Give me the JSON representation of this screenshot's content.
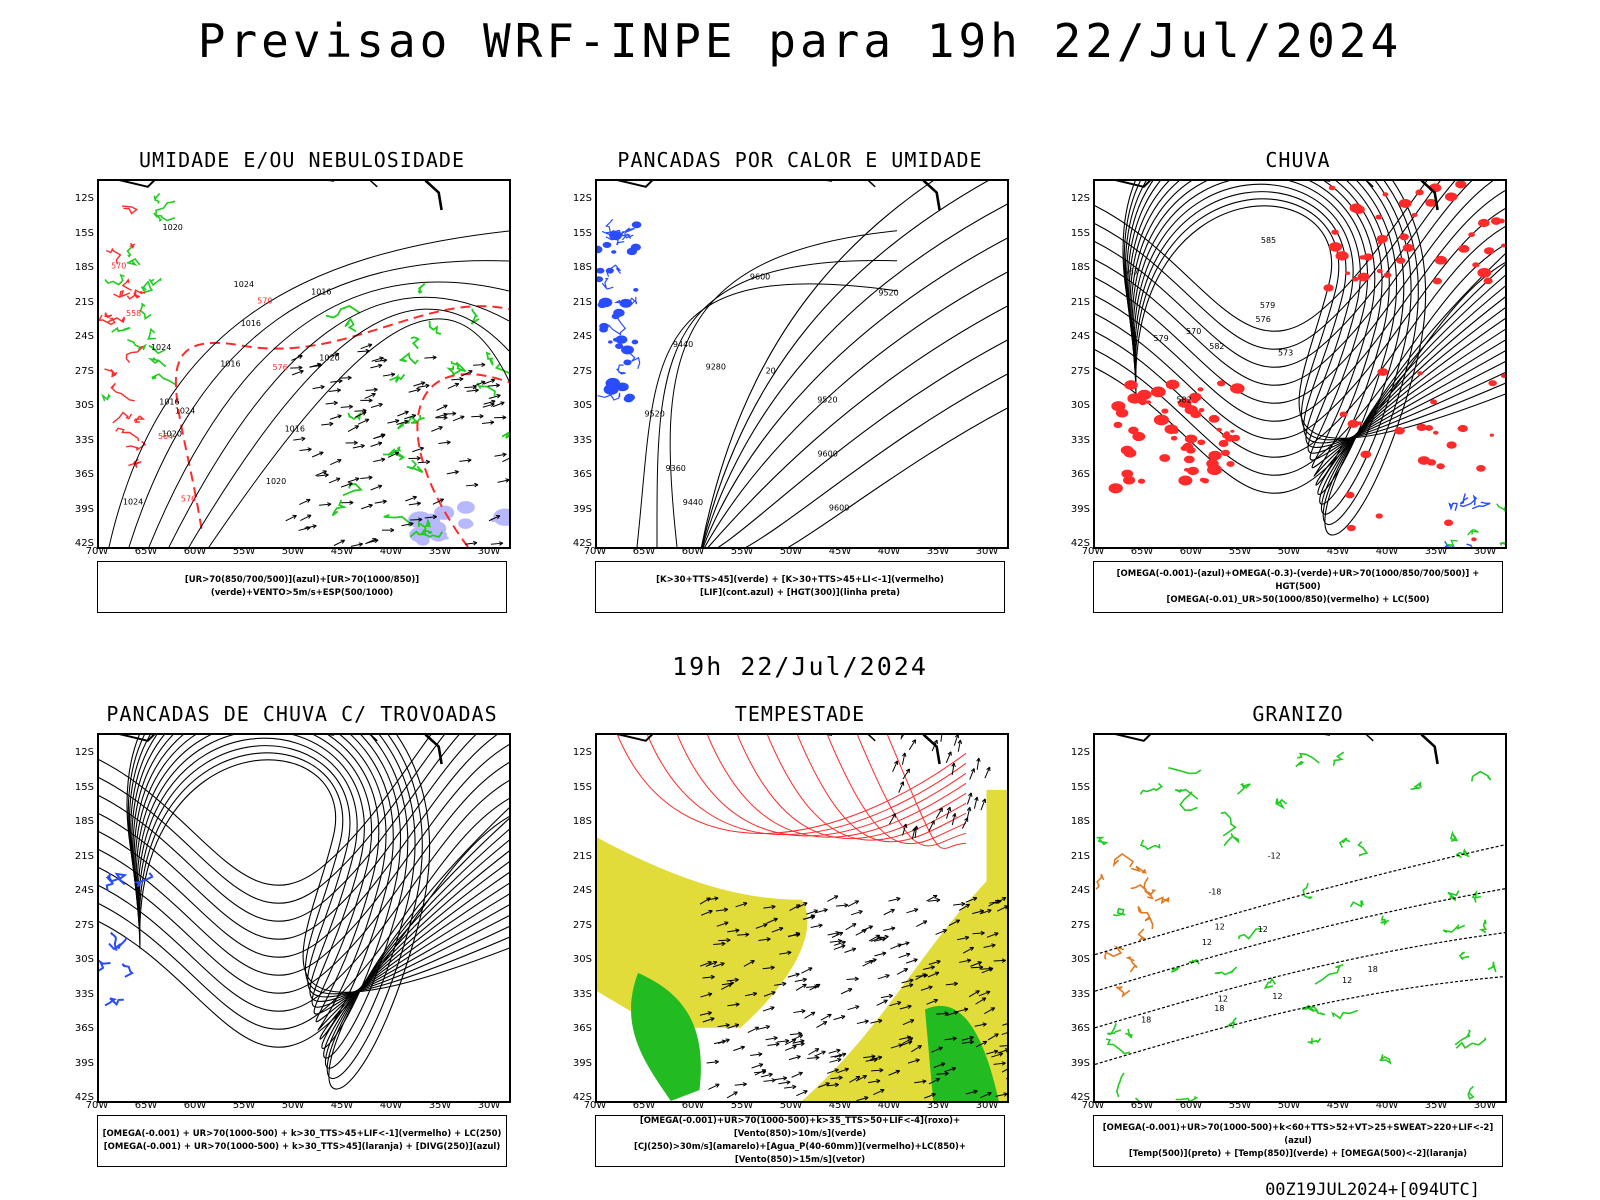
{
  "title": "Previsao WRF-INPE  para 19h 22/Jul/2024",
  "subtitle": "19h 22/Jul/2024",
  "footer": "00Z19JUL2024+[094UTC]",
  "lat_labels": [
    "12S",
    "15S",
    "18S",
    "21S",
    "24S",
    "27S",
    "30S",
    "33S",
    "36S",
    "39S",
    "42S"
  ],
  "lon_labels": [
    "70W",
    "65W",
    "60W",
    "55W",
    "50W",
    "45W",
    "40W",
    "35W",
    "30W"
  ],
  "colors": {
    "red": "#ff2a2a",
    "green": "#22cc22",
    "blue": "#2a4cff",
    "yellow": "#e2dc3a",
    "lavender": "#b8b8ff",
    "darkgreen": "#22bb22",
    "orange": "#e07a20"
  },
  "panels": [
    {
      "title": "UMIDADE E/OU NEBULOSIDADE",
      "legend": [
        "[UR>70(850/700/500)](azul)+[UR>70(1000/850)](verde)+VENTO>5m/s+ESP(500/1000)"
      ],
      "contour_labels": [
        "1020",
        "1016",
        "1016",
        "1020",
        "1016",
        "1024",
        "1024",
        "1024",
        "1024",
        "1016",
        "1020",
        "1020",
        "1016"
      ],
      "colored_labels": [
        "570",
        "570",
        "558",
        "576",
        "576",
        "564"
      ]
    },
    {
      "title": "PANCADAS POR CALOR E UMIDADE",
      "legend": [
        "[K>30+TTS>45](verde) + [K>30+TTS>45+LI<-1](vermelho)",
        "[LIF](cont.azul) + [HGT(300)](linha preta)"
      ],
      "contour_labels": [
        "9600",
        "9520",
        "9600",
        "9600",
        "9440",
        "9520",
        "9360",
        "9440",
        "9280",
        "9520",
        "20"
      ]
    },
    {
      "title": "CHUVA",
      "legend": [
        "[OMEGA(-0.001)-(azul)+OMEGA(-0.3)-(verde)+UR>70(1000/850/700/500)] + HGT(500)",
        "[OMEGA(-0.01)_UR>50(1000/850)(vermelho) + LC(500)"
      ],
      "contour_labels": [
        "585",
        "582",
        "579",
        "576",
        "573",
        "570",
        "567",
        "582",
        "579"
      ]
    },
    {
      "title": "PANCADAS DE CHUVA C/ TROVOADAS",
      "legend": [
        "[OMEGA(-0.001) + UR>70(1000-500) + k>30_TTS>45+LIF<-1](vermelho) + LC(250)",
        "[OMEGA(-0.001) + UR>70(1000-500) + k>30_TTS>45](laranja) + [DIVG(250)](azul)"
      ]
    },
    {
      "title": "TEMPESTADE",
      "legend": [
        "[OMEGA(-0.001)+UR>70(1000-500)+k>35_TTS>50+LIF<-4](roxo)+[Vento(850)>10m/s](verde)",
        "[CJ(250)>30m/s](amarelo)+[Agua_P(40-60mm)](vermelho)+LC(850)+[Vento(850)>15m/s](vetor)"
      ]
    },
    {
      "title": "GRANIZO",
      "legend": [
        "[OMEGA(-0.001)+UR>70(1000-500)+k<60+TTS>52+VT>25+SWEAT>220+LIF<-2](azul)",
        "[Temp(500)](preto) + [Temp(850)](verde) + [OMEGA(500)<-2](laranja)"
      ],
      "contour_labels": [
        "12",
        "-12",
        "-18",
        "12",
        "12",
        "18",
        "12",
        "18",
        "12",
        "18",
        "12"
      ]
    }
  ]
}
